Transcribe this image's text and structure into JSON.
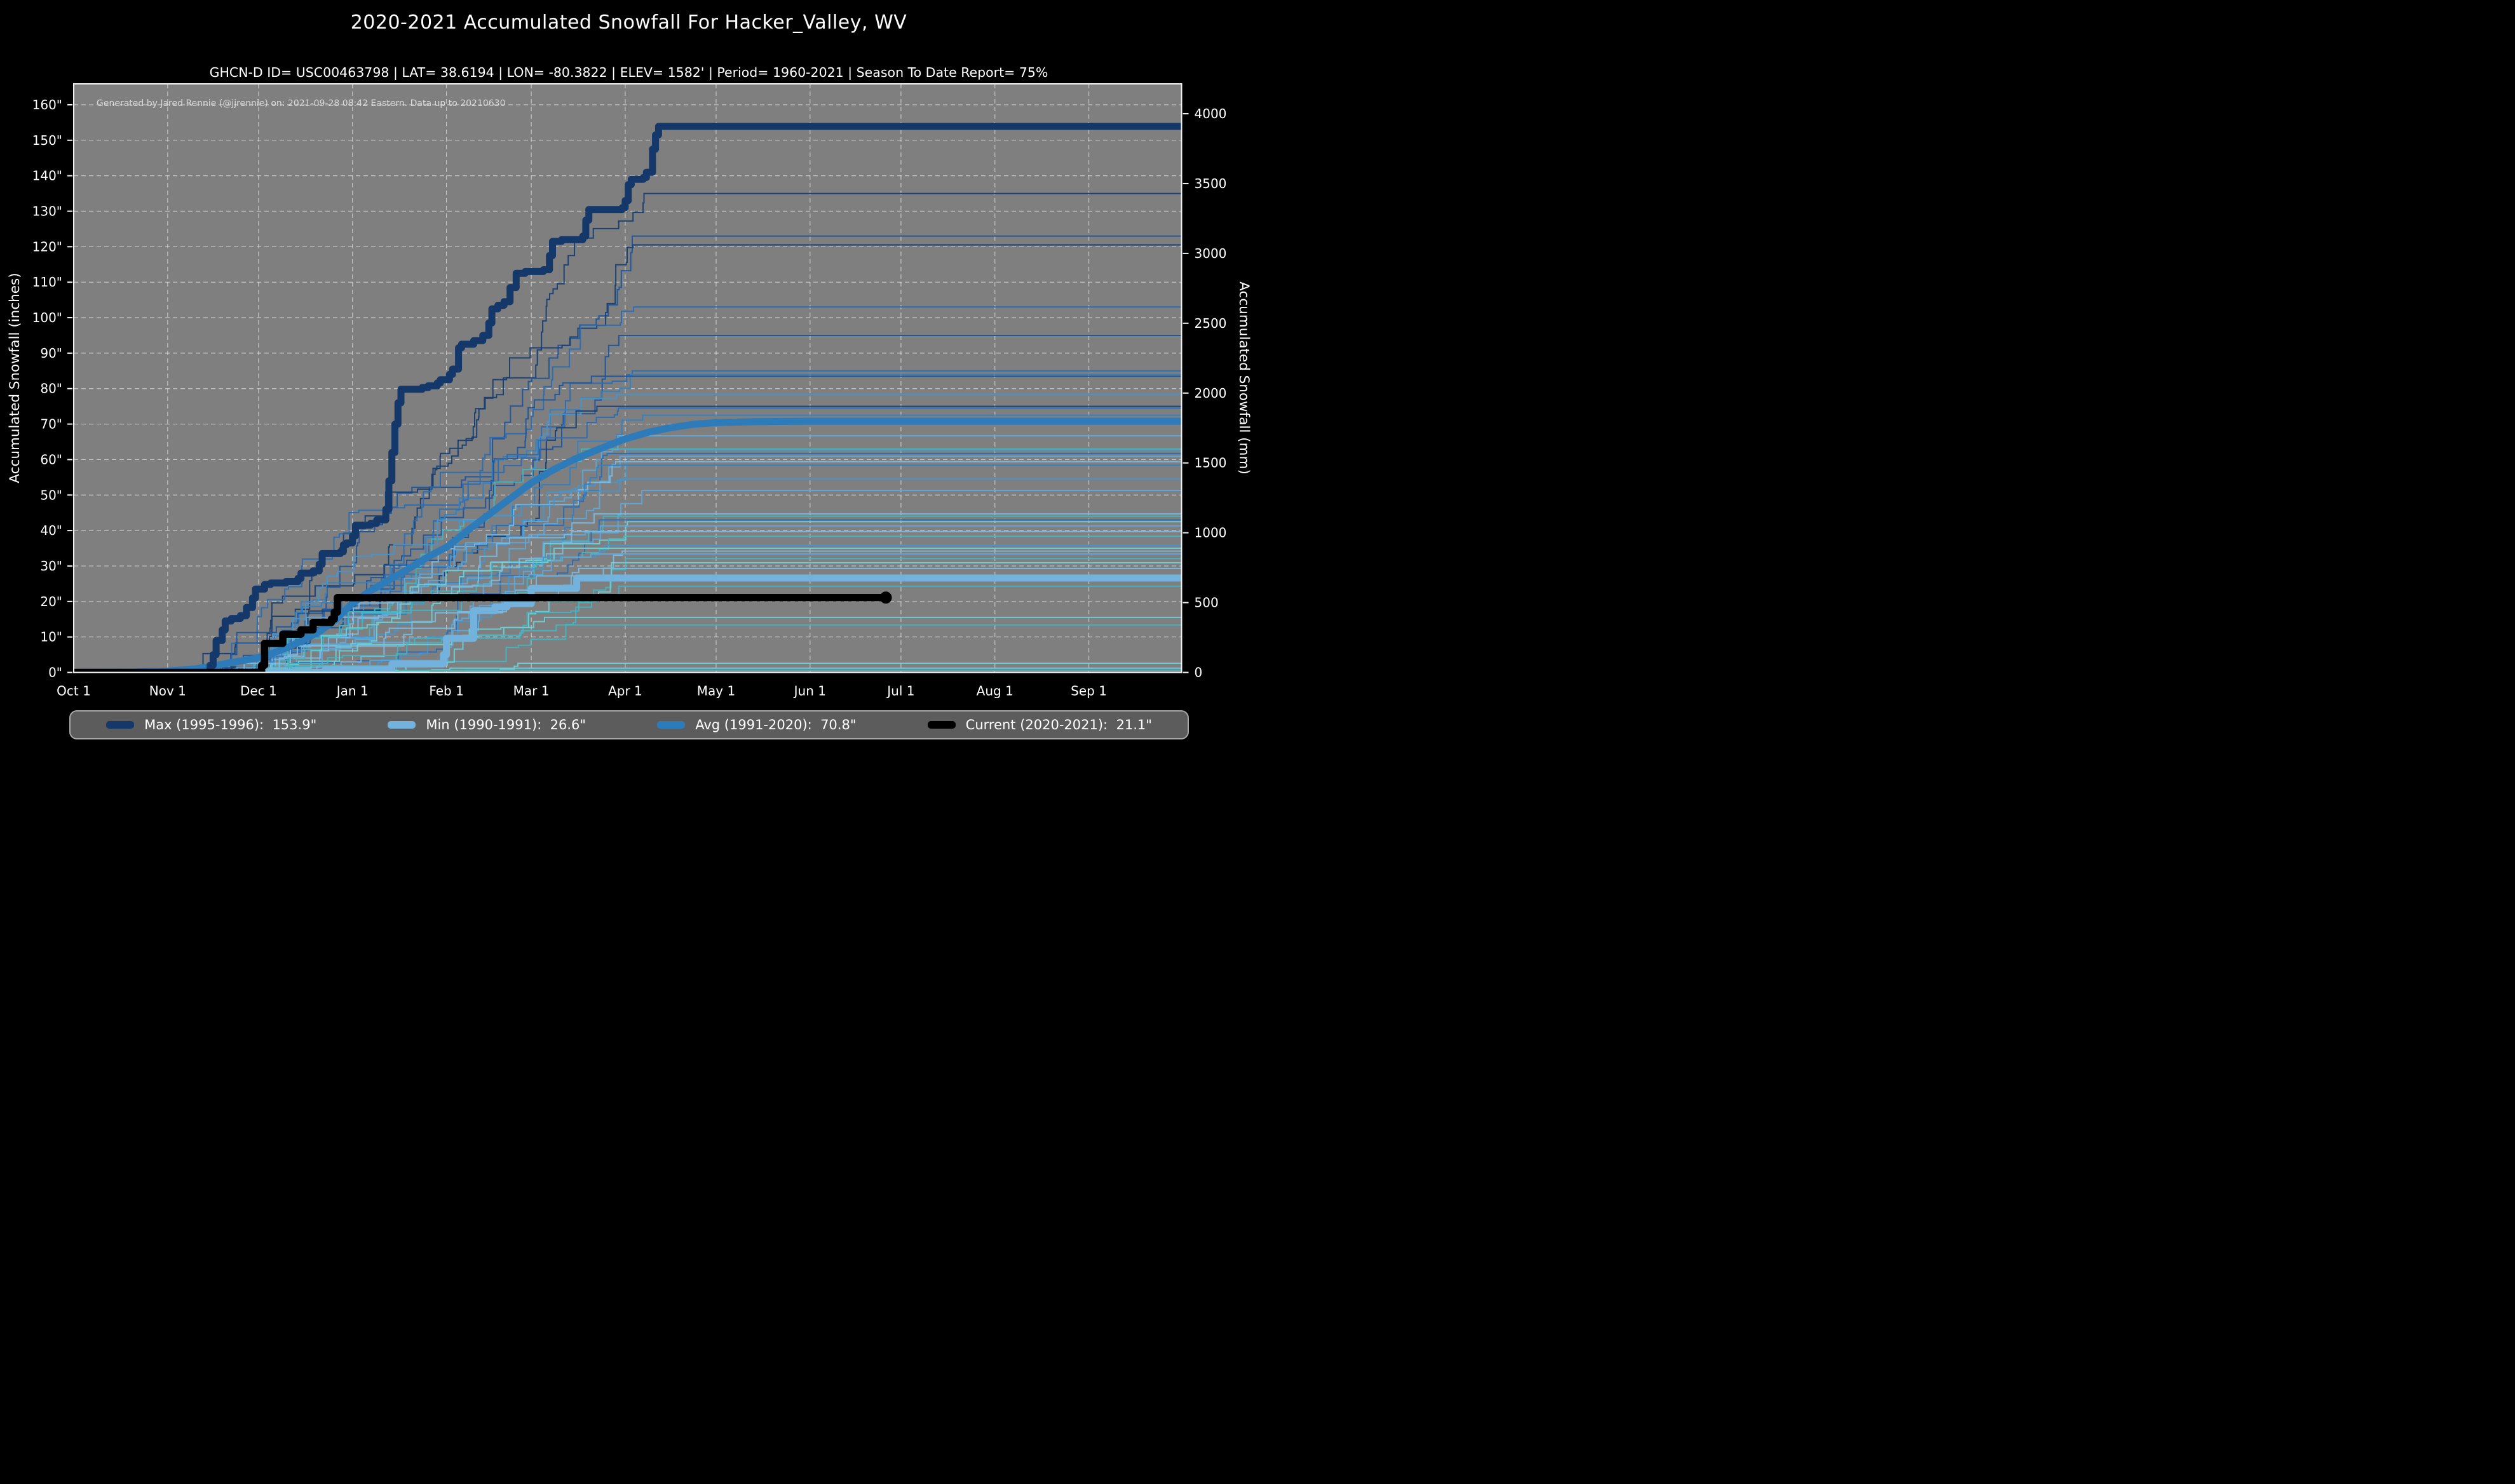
{
  "page": {
    "title": "2020-2021 Accumulated Snowfall For Hacker_Valley, WV",
    "subtitle": "GHCN-D ID= USC00463798 | LAT= 38.6194 | LON= -80.3822 | ELEV= 1582' | Period= 1960-2021 | Season To Date Report= 75%"
  },
  "attribution": "Generated by Jared Rennie (@jjrennie) on: 2021-09-28 08:42 Eastern. Data up to 20210630",
  "colors": {
    "background": "#000000",
    "plot_background": "#7f7f7f",
    "grid": "rgba(255,255,255,0.55)",
    "spine": "#f2f2f2",
    "text": "#ffffff",
    "attribution_text": "#d9d9d9",
    "max_line": "#14386a",
    "min_line": "#72b2dd",
    "avg_line": "#2d7bb9",
    "current_line": "#000000",
    "legend_background": "#5c5c5c",
    "legend_border": "#a8a8a8"
  },
  "legend": {
    "items": [
      {
        "name": "max",
        "label": "Max (1995-1996):",
        "value": "153.9\"",
        "color": "#14386a"
      },
      {
        "name": "min",
        "label": "Min (1990-1991):",
        "value": "26.6\"",
        "color": "#72b2dd"
      },
      {
        "name": "avg",
        "label": "Avg (1991-2020):",
        "value": "70.8\"",
        "color": "#2d7bb9"
      },
      {
        "name": "current",
        "label": "Current (2020-2021):",
        "value": "21.1\"",
        "color": "#000000"
      }
    ]
  },
  "chart_data": {
    "type": "line",
    "title": "2020-2021 Accumulated Snowfall For Hacker_Valley, WV",
    "x_axis": {
      "unit": "day of season, Oct 1 = 0",
      "domain_days": [
        0,
        365.6
      ],
      "tick_labels": [
        "Oct 1",
        "Nov 1",
        "Dec 1",
        "Jan 1",
        "Feb 1",
        "Mar 1",
        "Apr 1",
        "May 1",
        "Jun 1",
        "Jul 1",
        "Aug 1",
        "Sep 1"
      ],
      "tick_days": [
        0,
        31,
        61,
        92,
        123,
        151,
        182,
        212,
        243,
        273,
        304,
        335
      ]
    },
    "y_left": {
      "label": "Accumulated Snowfall (inches)",
      "domain_inches": [
        0,
        165.9
      ],
      "ticks_inches": [
        0,
        10,
        20,
        30,
        40,
        50,
        60,
        70,
        80,
        90,
        100,
        110,
        120,
        130,
        140,
        150,
        160
      ]
    },
    "y_right": {
      "label": "Accumulated Snowfall (mm)",
      "ticks_mm": [
        0,
        500,
        1000,
        1500,
        2000,
        2500,
        3000,
        3500,
        4000
      ],
      "mm_per_inch": 25.4
    },
    "grid": {
      "show": true,
      "style": "dashed",
      "both_axes": true
    },
    "series": [
      {
        "id": "max",
        "name": "Max (1995-1996)",
        "final_inches": 153.9,
        "width": 11,
        "kind": "step",
        "points": [
          [
            0,
            0
          ],
          [
            44,
            0
          ],
          [
            45,
            2
          ],
          [
            46,
            5
          ],
          [
            47,
            9
          ],
          [
            49,
            12
          ],
          [
            50,
            14.5
          ],
          [
            52,
            15.2
          ],
          [
            55,
            16
          ],
          [
            57,
            18.3
          ],
          [
            59,
            21
          ],
          [
            60,
            23.5
          ],
          [
            63,
            24.8
          ],
          [
            65,
            25.2
          ],
          [
            70,
            25.6
          ],
          [
            74,
            26.5
          ],
          [
            75,
            28
          ],
          [
            79,
            28.6
          ],
          [
            81,
            30.5
          ],
          [
            82,
            33.5
          ],
          [
            88,
            34
          ],
          [
            89,
            36
          ],
          [
            90,
            36.5
          ],
          [
            92,
            38.5
          ],
          [
            93,
            41.5
          ],
          [
            98,
            42
          ],
          [
            100,
            43
          ],
          [
            103,
            46
          ],
          [
            104,
            54
          ],
          [
            105,
            62
          ],
          [
            106,
            70
          ],
          [
            107,
            76
          ],
          [
            108,
            79.8
          ],
          [
            115,
            80.3
          ],
          [
            117,
            80.8
          ],
          [
            120,
            81.6
          ],
          [
            121,
            82.5
          ],
          [
            124,
            84
          ],
          [
            125,
            85.5
          ],
          [
            127,
            91.5
          ],
          [
            128,
            92.5
          ],
          [
            132,
            93.5
          ],
          [
            135,
            95
          ],
          [
            137,
            98.5
          ],
          [
            138,
            102.5
          ],
          [
            140,
            103.5
          ],
          [
            142,
            104.5
          ],
          [
            144,
            108.5
          ],
          [
            146,
            112.5
          ],
          [
            149,
            113
          ],
          [
            155,
            113.5
          ],
          [
            157,
            117.5
          ],
          [
            158,
            121.5
          ],
          [
            161,
            122
          ],
          [
            168,
            123
          ],
          [
            169,
            127.5
          ],
          [
            170,
            130.5
          ],
          [
            181,
            131
          ],
          [
            182,
            133
          ],
          [
            183,
            137.5
          ],
          [
            184,
            139
          ],
          [
            188,
            139.5
          ],
          [
            189,
            141
          ],
          [
            191,
            147.5
          ],
          [
            192,
            151.5
          ],
          [
            193,
            153.9
          ],
          [
            365.6,
            153.9
          ]
        ]
      },
      {
        "id": "min",
        "name": "Min (1990-1991)",
        "final_inches": 26.6,
        "width": 11,
        "kind": "step",
        "points": [
          [
            0,
            0
          ],
          [
            82,
            0
          ],
          [
            83,
            0.8
          ],
          [
            105,
            2.4
          ],
          [
            122,
            5
          ],
          [
            123,
            9.6
          ],
          [
            132,
            17.4
          ],
          [
            139,
            18.5
          ],
          [
            143,
            19.4
          ],
          [
            151,
            23.7
          ],
          [
            166,
            26.6
          ],
          [
            365.6,
            26.6
          ]
        ]
      },
      {
        "id": "avg",
        "name": "Avg (1991-2020)",
        "final_inches": 70.8,
        "width": 11,
        "kind": "smooth",
        "points": [
          [
            0,
            0
          ],
          [
            20,
            0.1
          ],
          [
            31,
            0.4
          ],
          [
            40,
            1
          ],
          [
            46,
            1.8
          ],
          [
            52,
            2.8
          ],
          [
            57,
            3.5
          ],
          [
            61,
            4.2
          ],
          [
            66,
            5.5
          ],
          [
            71,
            7.2
          ],
          [
            76,
            9.2
          ],
          [
            81,
            11.5
          ],
          [
            86,
            14.5
          ],
          [
            92,
            19.5
          ],
          [
            97,
            22.5
          ],
          [
            102,
            25
          ],
          [
            107,
            27.5
          ],
          [
            112,
            30
          ],
          [
            117,
            32.6
          ],
          [
            123,
            35.3
          ],
          [
            130,
            40
          ],
          [
            137,
            44.5
          ],
          [
            144,
            49
          ],
          [
            151,
            53.4
          ],
          [
            158,
            57
          ],
          [
            165,
            60
          ],
          [
            172,
            62.5
          ],
          [
            178,
            64.5
          ],
          [
            182,
            65.8
          ],
          [
            190,
            67.8
          ],
          [
            197,
            69
          ],
          [
            205,
            70
          ],
          [
            212,
            70.4
          ],
          [
            225,
            70.7
          ],
          [
            243,
            70.8
          ],
          [
            365.6,
            70.8
          ]
        ]
      },
      {
        "id": "current",
        "name": "Current (2020-2021)",
        "final_inches": 21.1,
        "width": 11.5,
        "kind": "step",
        "points": [
          [
            0,
            0
          ],
          [
            61,
            0
          ],
          [
            62,
            2
          ],
          [
            63,
            8.2
          ],
          [
            69,
            10.8
          ],
          [
            75,
            12
          ],
          [
            79,
            14.1
          ],
          [
            85,
            15
          ],
          [
            86,
            17
          ],
          [
            87,
            21.1
          ],
          [
            268,
            21.1
          ]
        ],
        "end_marker": {
          "day": 268,
          "inches": 21.1,
          "radius": 9.5
        }
      }
    ],
    "background_years": {
      "description": "Unlabeled individual seasons 1960-2021 (thin lines); finals read from right edge",
      "palette": [
        "#173f73",
        "#1d559b",
        "#2a6db4",
        "#3182c4",
        "#4696cf",
        "#5fa8d8",
        "#7ab9e0",
        "#43b5c2",
        "#6fcfd4"
      ],
      "seasons": [
        {
          "final": 135,
          "start": 40,
          "end": 190,
          "color": 0,
          "seed": 1
        },
        {
          "final": 123,
          "start": 45,
          "end": 185,
          "color": 1,
          "seed": 2
        },
        {
          "final": 120.5,
          "start": 42,
          "end": 192,
          "color": 0,
          "seed": 3
        },
        {
          "final": 103,
          "start": 50,
          "end": 188,
          "color": 2,
          "seed": 4
        },
        {
          "final": 95,
          "start": 44,
          "end": 180,
          "color": 1,
          "seed": 5
        },
        {
          "final": 85,
          "start": 48,
          "end": 186,
          "color": 2,
          "seed": 6
        },
        {
          "final": 84,
          "start": 52,
          "end": 190,
          "color": 3,
          "seed": 7
        },
        {
          "final": 83.5,
          "start": 46,
          "end": 178,
          "color": 1,
          "seed": 8
        },
        {
          "final": 78.3,
          "start": 55,
          "end": 182,
          "color": 4,
          "seed": 9
        },
        {
          "final": 75,
          "start": 47,
          "end": 176,
          "color": 0,
          "seed": 10
        },
        {
          "final": 74.5,
          "start": 50,
          "end": 184,
          "color": 2,
          "seed": 11
        },
        {
          "final": 72.5,
          "start": 58,
          "end": 188,
          "color": 3,
          "seed": 12
        },
        {
          "final": 66.7,
          "start": 49,
          "end": 180,
          "color": 5,
          "seed": 13
        },
        {
          "final": 63,
          "start": 53,
          "end": 175,
          "color": 7,
          "seed": 14
        },
        {
          "final": 62.5,
          "start": 60,
          "end": 185,
          "color": 4,
          "seed": 15
        },
        {
          "final": 61.7,
          "start": 51,
          "end": 179,
          "color": 2,
          "seed": 16
        },
        {
          "final": 60.9,
          "start": 56,
          "end": 183,
          "color": 5,
          "seed": 17
        },
        {
          "final": 59.4,
          "start": 62,
          "end": 186,
          "color": 6,
          "seed": 18
        },
        {
          "final": 58.4,
          "start": 48,
          "end": 174,
          "color": 3,
          "seed": 19
        },
        {
          "final": 54.6,
          "start": 57,
          "end": 181,
          "color": 4,
          "seed": 20
        },
        {
          "final": 51.3,
          "start": 64,
          "end": 188,
          "color": 5,
          "seed": 21
        },
        {
          "final": 44.7,
          "start": 59,
          "end": 176,
          "color": 6,
          "seed": 22
        },
        {
          "final": 44,
          "start": 66,
          "end": 182,
          "color": 7,
          "seed": 23
        },
        {
          "final": 43,
          "start": 54,
          "end": 178,
          "color": 2,
          "seed": 24
        },
        {
          "final": 42.5,
          "start": 61,
          "end": 184,
          "color": 8,
          "seed": 25
        },
        {
          "final": 41.3,
          "start": 68,
          "end": 180,
          "color": 5,
          "seed": 26
        },
        {
          "final": 39.7,
          "start": 56,
          "end": 175,
          "color": 6,
          "seed": 27
        },
        {
          "final": 38.4,
          "start": 63,
          "end": 186,
          "color": 7,
          "seed": 28
        },
        {
          "final": 35.9,
          "start": 70,
          "end": 182,
          "color": 4,
          "seed": 29
        },
        {
          "final": 35,
          "start": 58,
          "end": 177,
          "color": 8,
          "seed": 30
        },
        {
          "final": 34.2,
          "start": 65,
          "end": 183,
          "color": 6,
          "seed": 31
        },
        {
          "final": 33.4,
          "start": 72,
          "end": 179,
          "color": 5,
          "seed": 32
        },
        {
          "final": 32.1,
          "start": 60,
          "end": 185,
          "color": 7,
          "seed": 33
        },
        {
          "final": 30.9,
          "start": 67,
          "end": 181,
          "color": 8,
          "seed": 34
        },
        {
          "final": 29.3,
          "start": 74,
          "end": 176,
          "color": 6,
          "seed": 35
        },
        {
          "final": 24.3,
          "start": 69,
          "end": 184,
          "color": 7,
          "seed": 36
        },
        {
          "final": 15.5,
          "start": 76,
          "end": 170,
          "color": 8,
          "seed": 37
        },
        {
          "final": 13.4,
          "start": 71,
          "end": 165,
          "color": 7,
          "seed": 38
        },
        {
          "final": 2.6,
          "start": 85,
          "end": 150,
          "color": 8,
          "seed": 39
        },
        {
          "final": 1.2,
          "start": 90,
          "end": 140,
          "color": 8,
          "seed": 40
        },
        {
          "final": 0.6,
          "start": 95,
          "end": 130,
          "color": 7,
          "seed": 41
        }
      ]
    }
  }
}
